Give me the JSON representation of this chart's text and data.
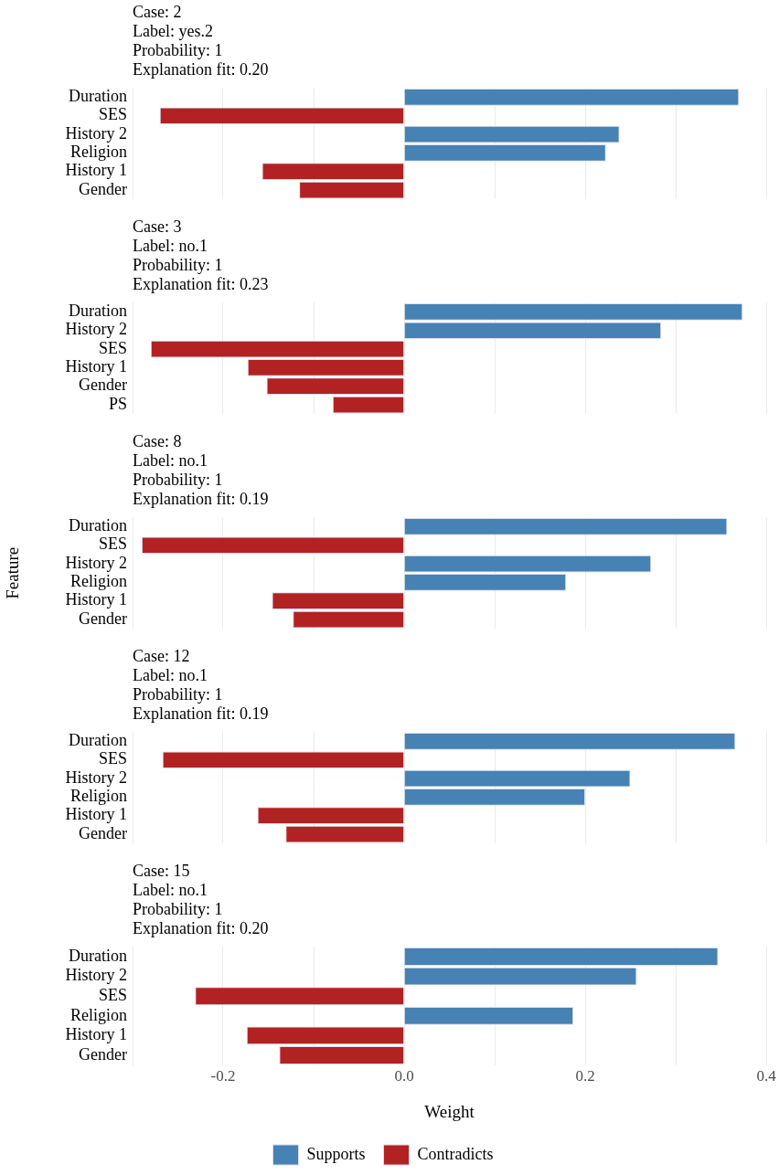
{
  "chart_data": [
    {
      "type": "bar",
      "orientation": "horizontal",
      "stacked": true,
      "title": "Case: 2\nLabel: yes.2\nProbability: 1\nExplanation fit: 0.20",
      "categories": [
        "Duration",
        "SES",
        "History 2",
        "Religion",
        "History 1",
        "Gender"
      ],
      "series": [
        {
          "color": "#4682b4",
          "values": [
            0.37,
            null,
            0.238,
            0.223,
            null,
            null
          ]
        },
        {
          "color": "#b22222",
          "values": [
            null,
            -0.27,
            null,
            null,
            -0.157,
            -0.116
          ]
        }
      ],
      "xlim": [
        -0.3,
        0.4
      ],
      "xticks": [
        {
          "value": -0.3,
          "label": null
        },
        {
          "value": -0.2,
          "label": null
        },
        {
          "value": -0.1,
          "label": null
        },
        {
          "value": 0,
          "label": null
        },
        {
          "value": 0.1,
          "label": null
        },
        {
          "value": 0.2,
          "label": null
        },
        {
          "value": 0.3,
          "label": null
        },
        {
          "value": 0.4,
          "label": null
        }
      ],
      "grid": "x",
      "tick_labels": "y",
      "legend": false
    },
    {
      "type": "bar",
      "orientation": "horizontal",
      "stacked": true,
      "title": "Case: 3\nLabel: no.1\nProbability: 1\nExplanation fit: 0.23",
      "categories": [
        "Duration",
        "History 2",
        "SES",
        "History 1",
        "Gender",
        "PS"
      ],
      "series": [
        {
          "color": "#4682b4",
          "values": [
            0.374,
            0.284,
            null,
            null,
            null,
            null
          ]
        },
        {
          "color": "#b22222",
          "values": [
            null,
            null,
            -0.28,
            -0.173,
            -0.152,
            -0.079
          ]
        }
      ],
      "xlim": [
        -0.3,
        0.4
      ],
      "xticks": [
        {
          "value": -0.3,
          "label": null
        },
        {
          "value": -0.2,
          "label": null
        },
        {
          "value": -0.1,
          "label": null
        },
        {
          "value": 0,
          "label": null
        },
        {
          "value": 0.1,
          "label": null
        },
        {
          "value": 0.2,
          "label": null
        },
        {
          "value": 0.3,
          "label": null
        },
        {
          "value": 0.4,
          "label": null
        }
      ],
      "grid": "x",
      "tick_labels": "y",
      "legend": false
    },
    {
      "type": "bar",
      "orientation": "horizontal",
      "stacked": true,
      "title": "Case: 8\nLabel: no.1\nProbability: 1\nExplanation fit: 0.19",
      "ylabel": "Feature",
      "categories": [
        "Duration",
        "SES",
        "History 2",
        "Religion",
        "History 1",
        "Gender"
      ],
      "series": [
        {
          "color": "#4682b4",
          "values": [
            0.357,
            null,
            0.273,
            0.179,
            null,
            null
          ]
        },
        {
          "color": "#b22222",
          "values": [
            null,
            -0.29,
            null,
            null,
            -0.146,
            -0.123
          ]
        }
      ],
      "xlim": [
        -0.3,
        0.4
      ],
      "xticks": [
        {
          "value": -0.3,
          "label": null
        },
        {
          "value": -0.2,
          "label": null
        },
        {
          "value": -0.1,
          "label": null
        },
        {
          "value": 0,
          "label": null
        },
        {
          "value": 0.1,
          "label": null
        },
        {
          "value": 0.2,
          "label": null
        },
        {
          "value": 0.3,
          "label": null
        },
        {
          "value": 0.4,
          "label": null
        }
      ],
      "grid": "x",
      "tick_labels": "y",
      "legend": false
    },
    {
      "type": "bar",
      "orientation": "horizontal",
      "stacked": true,
      "title": "Case: 12\nLabel: no.1\nProbability: 1\nExplanation fit: 0.19",
      "categories": [
        "Duration",
        "SES",
        "History 2",
        "Religion",
        "History 1",
        "Gender"
      ],
      "series": [
        {
          "color": "#4682b4",
          "values": [
            0.366,
            null,
            0.25,
            0.2,
            null,
            null
          ]
        },
        {
          "color": "#b22222",
          "values": [
            null,
            -0.267,
            null,
            null,
            -0.162,
            -0.131
          ]
        }
      ],
      "xlim": [
        -0.3,
        0.4
      ],
      "xticks": [
        {
          "value": -0.3,
          "label": null
        },
        {
          "value": -0.2,
          "label": null
        },
        {
          "value": -0.1,
          "label": null
        },
        {
          "value": 0,
          "label": null
        },
        {
          "value": 0.1,
          "label": null
        },
        {
          "value": 0.2,
          "label": null
        },
        {
          "value": 0.3,
          "label": null
        },
        {
          "value": 0.4,
          "label": null
        }
      ],
      "grid": "x",
      "tick_labels": "y",
      "legend": false
    },
    {
      "type": "bar",
      "orientation": "horizontal",
      "stacked": true,
      "title": "Case: 15\nLabel: no.1\nProbability: 1\nExplanation fit: 0.20",
      "xlabel": "Weight",
      "categories": [
        "Duration",
        "History 2",
        "SES",
        "Religion",
        "History 1",
        "Gender"
      ],
      "series": [
        {
          "name": "Supports",
          "color": "#4682b4",
          "values": [
            0.347,
            0.257,
            null,
            0.187,
            null,
            null
          ]
        },
        {
          "name": "Contradicts",
          "color": "#b22222",
          "values": [
            null,
            null,
            -0.231,
            null,
            -0.174,
            -0.138
          ]
        }
      ],
      "xlim": [
        -0.3,
        0.4
      ],
      "xticks": [
        {
          "value": -0.3,
          "label": null
        },
        -0.2,
        {
          "value": -0.1,
          "label": null
        },
        {
          "value": 0,
          "label": "0.0"
        },
        {
          "value": 0.1,
          "label": null
        },
        0.2,
        {
          "value": 0.3,
          "label": null
        },
        0.4
      ],
      "grid": "x",
      "legend": "bottom"
    }
  ]
}
